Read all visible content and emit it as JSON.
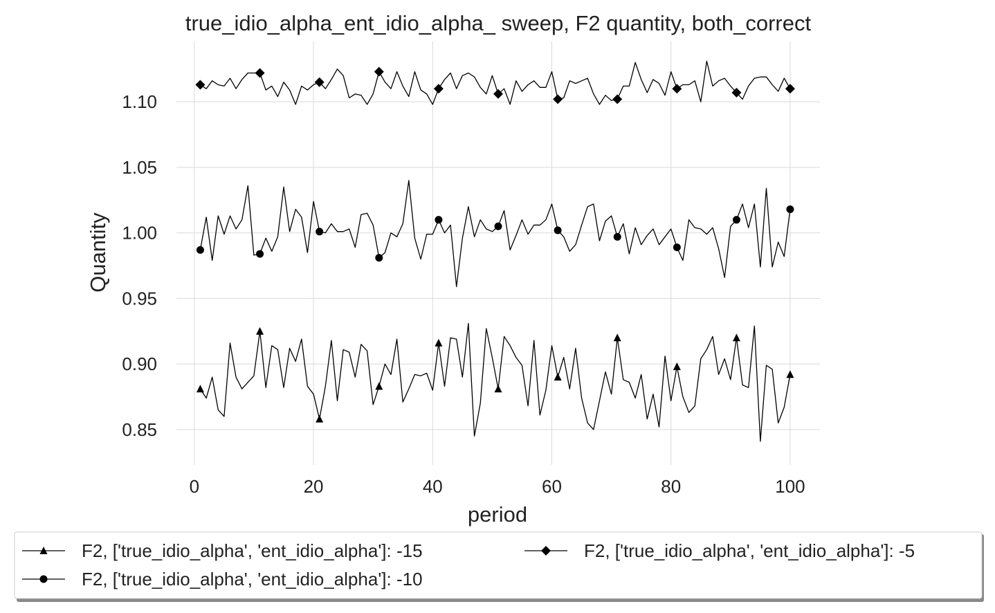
{
  "chart_data": {
    "type": "line",
    "title": "true_idio_alpha_ent_idio_alpha_ sweep, F2 quantity, both_correct",
    "xlabel": "period",
    "ylabel": "Quantity",
    "xlim": [
      -3,
      105
    ],
    "ylim": [
      0.823,
      1.146
    ],
    "x_ticks": [
      0,
      20,
      40,
      60,
      80,
      100
    ],
    "x_tick_labels": [
      "0",
      "20",
      "40",
      "60",
      "80",
      "100"
    ],
    "y_ticks": [
      0.85,
      0.9,
      0.95,
      1.0,
      1.05,
      1.1
    ],
    "y_tick_labels": [
      "0.85",
      "0.90",
      "0.95",
      "1.00",
      "1.05",
      "1.10"
    ],
    "grid": true,
    "legend_position": "bottom",
    "line_color": "#000000",
    "marker_every": 10,
    "x": [
      1,
      2,
      3,
      4,
      5,
      6,
      7,
      8,
      9,
      10,
      11,
      12,
      13,
      14,
      15,
      16,
      17,
      18,
      19,
      20,
      21,
      22,
      23,
      24,
      25,
      26,
      27,
      28,
      29,
      30,
      31,
      32,
      33,
      34,
      35,
      36,
      37,
      38,
      39,
      40,
      41,
      42,
      43,
      44,
      45,
      46,
      47,
      48,
      49,
      50,
      51,
      52,
      53,
      54,
      55,
      56,
      57,
      58,
      59,
      60,
      61,
      62,
      63,
      64,
      65,
      66,
      67,
      68,
      69,
      70,
      71,
      72,
      73,
      74,
      75,
      76,
      77,
      78,
      79,
      80,
      81,
      82,
      83,
      84,
      85,
      86,
      87,
      88,
      89,
      90,
      91,
      92,
      93,
      94,
      95,
      96,
      97,
      98,
      99,
      100
    ],
    "series": [
      {
        "name": "F2, ['true_idio_alpha', 'ent_idio_alpha']: -15",
        "marker": "triangle",
        "values": [
          0.881,
          0.874,
          0.89,
          0.865,
          0.86,
          0.916,
          0.89,
          0.881,
          0.886,
          0.891,
          0.925,
          0.882,
          0.914,
          0.911,
          0.882,
          0.912,
          0.902,
          0.919,
          0.883,
          0.877,
          0.858,
          0.883,
          0.918,
          0.872,
          0.911,
          0.909,
          0.89,
          0.915,
          0.91,
          0.869,
          0.883,
          0.9,
          0.892,
          0.919,
          0.871,
          0.881,
          0.892,
          0.891,
          0.893,
          0.88,
          0.916,
          0.883,
          0.92,
          0.919,
          0.89,
          0.931,
          0.845,
          0.87,
          0.927,
          0.905,
          0.881,
          0.921,
          0.914,
          0.905,
          0.899,
          0.868,
          0.918,
          0.861,
          0.88,
          0.914,
          0.89,
          0.905,
          0.881,
          0.912,
          0.874,
          0.855,
          0.85,
          0.872,
          0.894,
          0.877,
          0.92,
          0.888,
          0.886,
          0.874,
          0.892,
          0.858,
          0.877,
          0.852,
          0.906,
          0.872,
          0.898,
          0.875,
          0.863,
          0.868,
          0.904,
          0.911,
          0.921,
          0.892,
          0.904,
          0.888,
          0.92,
          0.884,
          0.882,
          0.929,
          0.841,
          0.899,
          0.896,
          0.855,
          0.867,
          0.892
        ]
      },
      {
        "name": "F2, ['true_idio_alpha', 'ent_idio_alpha']: -10",
        "marker": "circle",
        "values": [
          0.987,
          1.012,
          0.979,
          1.013,
          0.999,
          1.013,
          1.003,
          1.01,
          1.036,
          0.983,
          0.984,
          0.996,
          0.986,
          0.997,
          1.035,
          1.001,
          1.018,
          1.012,
          0.985,
          1.024,
          1.001,
          1.0,
          1.007,
          1.001,
          1.001,
          1.003,
          0.989,
          1.014,
          1.015,
          1.006,
          0.981,
          0.985,
          1.0,
          0.997,
          1.007,
          1.04,
          0.996,
          0.98,
          0.999,
          0.999,
          1.01,
          1.0,
          1.006,
          0.959,
          0.996,
          1.02,
          0.997,
          1.01,
          1.003,
          1.001,
          1.005,
          1.017,
          0.987,
          0.998,
          1.01,
          0.999,
          1.006,
          1.006,
          1.01,
          1.022,
          1.002,
          0.997,
          0.986,
          0.991,
          1.006,
          1.02,
          1.022,
          0.994,
          1.009,
          1.013,
          0.997,
          1.007,
          0.984,
          1.004,
          0.991,
          0.998,
          1.003,
          0.991,
          0.997,
          1.003,
          0.989,
          0.979,
          1.01,
          1.004,
          1.003,
          0.999,
          1.004,
          0.988,
          0.966,
          1.005,
          1.01,
          1.022,
          1.004,
          1.022,
          0.974,
          1.034,
          0.974,
          0.993,
          0.982,
          1.018
        ]
      },
      {
        "name": "F2, ['true_idio_alpha', 'ent_idio_alpha']: -5",
        "marker": "diamond",
        "values": [
          1.113,
          1.11,
          1.116,
          1.113,
          1.112,
          1.118,
          1.11,
          1.117,
          1.122,
          1.122,
          1.122,
          1.109,
          1.112,
          1.104,
          1.115,
          1.109,
          1.098,
          1.112,
          1.109,
          1.113,
          1.115,
          1.11,
          1.117,
          1.125,
          1.12,
          1.103,
          1.106,
          1.105,
          1.098,
          1.106,
          1.123,
          1.115,
          1.11,
          1.123,
          1.112,
          1.104,
          1.123,
          1.109,
          1.106,
          1.098,
          1.11,
          1.117,
          1.122,
          1.11,
          1.12,
          1.122,
          1.119,
          1.111,
          1.106,
          1.12,
          1.106,
          1.11,
          1.098,
          1.116,
          1.108,
          1.113,
          1.116,
          1.111,
          1.111,
          1.123,
          1.102,
          1.103,
          1.116,
          1.114,
          1.116,
          1.118,
          1.106,
          1.098,
          1.105,
          1.101,
          1.102,
          1.112,
          1.112,
          1.13,
          1.117,
          1.107,
          1.117,
          1.114,
          1.105,
          1.123,
          1.11,
          1.113,
          1.113,
          1.116,
          1.1,
          1.131,
          1.112,
          1.116,
          1.118,
          1.112,
          1.107,
          1.102,
          1.112,
          1.118,
          1.119,
          1.119,
          1.113,
          1.108,
          1.118,
          1.11
        ]
      }
    ]
  }
}
